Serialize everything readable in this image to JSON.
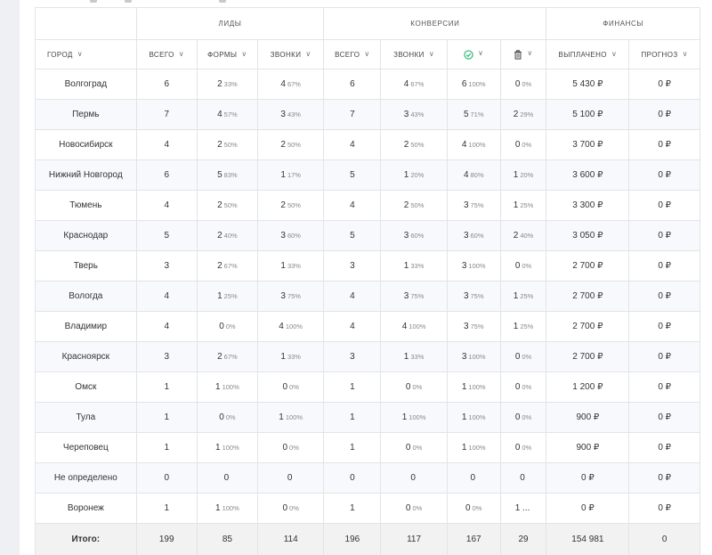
{
  "groups": [
    "Лиды",
    "Конверсии",
    "Финансы"
  ],
  "columns": {
    "city": "Город",
    "leads_total": "Всего",
    "leads_forms": "Формы",
    "leads_calls": "Звонки",
    "conv_total": "Всего",
    "conv_calls": "Звонки",
    "conv_ok_icon": "check-circle-icon",
    "conv_del_icon": "trash-icon",
    "spent": "Выплачено",
    "forecast": "Прогноз"
  },
  "colors": {
    "check": "#2bb673",
    "header_text": "#555555",
    "stripe": "#f8f9fc"
  },
  "rows": [
    {
      "city": "Волгоград",
      "lt": "6",
      "lf": "2",
      "lfp": "33%",
      "lc": "4",
      "lcp": "67%",
      "ct": "6",
      "cc": "4",
      "ccp": "67%",
      "ok": "6",
      "okp": "100%",
      "del": "0",
      "delp": "0%",
      "spent": "5 430 ₽",
      "fc": "0 ₽"
    },
    {
      "city": "Пермь",
      "lt": "7",
      "lf": "4",
      "lfp": "57%",
      "lc": "3",
      "lcp": "43%",
      "ct": "7",
      "cc": "3",
      "ccp": "43%",
      "ok": "5",
      "okp": "71%",
      "del": "2",
      "delp": "29%",
      "spent": "5 100 ₽",
      "fc": "0 ₽"
    },
    {
      "city": "Новосибирск",
      "lt": "4",
      "lf": "2",
      "lfp": "50%",
      "lc": "2",
      "lcp": "50%",
      "ct": "4",
      "cc": "2",
      "ccp": "50%",
      "ok": "4",
      "okp": "100%",
      "del": "0",
      "delp": "0%",
      "spent": "3 700 ₽",
      "fc": "0 ₽"
    },
    {
      "city": "Нижний Новгород",
      "lt": "6",
      "lf": "5",
      "lfp": "83%",
      "lc": "1",
      "lcp": "17%",
      "ct": "5",
      "cc": "1",
      "ccp": "20%",
      "ok": "4",
      "okp": "80%",
      "del": "1",
      "delp": "20%",
      "spent": "3 600 ₽",
      "fc": "0 ₽"
    },
    {
      "city": "Тюмень",
      "lt": "4",
      "lf": "2",
      "lfp": "50%",
      "lc": "2",
      "lcp": "50%",
      "ct": "4",
      "cc": "2",
      "ccp": "50%",
      "ok": "3",
      "okp": "75%",
      "del": "1",
      "delp": "25%",
      "spent": "3 300 ₽",
      "fc": "0 ₽"
    },
    {
      "city": "Краснодар",
      "lt": "5",
      "lf": "2",
      "lfp": "40%",
      "lc": "3",
      "lcp": "60%",
      "ct": "5",
      "cc": "3",
      "ccp": "60%",
      "ok": "3",
      "okp": "60%",
      "del": "2",
      "delp": "40%",
      "spent": "3 050 ₽",
      "fc": "0 ₽"
    },
    {
      "city": "Тверь",
      "lt": "3",
      "lf": "2",
      "lfp": "67%",
      "lc": "1",
      "lcp": "33%",
      "ct": "3",
      "cc": "1",
      "ccp": "33%",
      "ok": "3",
      "okp": "100%",
      "del": "0",
      "delp": "0%",
      "spent": "2 700 ₽",
      "fc": "0 ₽"
    },
    {
      "city": "Вологда",
      "lt": "4",
      "lf": "1",
      "lfp": "25%",
      "lc": "3",
      "lcp": "75%",
      "ct": "4",
      "cc": "3",
      "ccp": "75%",
      "ok": "3",
      "okp": "75%",
      "del": "1",
      "delp": "25%",
      "spent": "2 700 ₽",
      "fc": "0 ₽"
    },
    {
      "city": "Владимир",
      "lt": "4",
      "lf": "0",
      "lfp": "0%",
      "lc": "4",
      "lcp": "100%",
      "ct": "4",
      "cc": "4",
      "ccp": "100%",
      "ok": "3",
      "okp": "75%",
      "del": "1",
      "delp": "25%",
      "spent": "2 700 ₽",
      "fc": "0 ₽"
    },
    {
      "city": "Красноярск",
      "lt": "3",
      "lf": "2",
      "lfp": "67%",
      "lc": "1",
      "lcp": "33%",
      "ct": "3",
      "cc": "1",
      "ccp": "33%",
      "ok": "3",
      "okp": "100%",
      "del": "0",
      "delp": "0%",
      "spent": "2 700 ₽",
      "fc": "0 ₽"
    },
    {
      "city": "Омск",
      "lt": "1",
      "lf": "1",
      "lfp": "100%",
      "lc": "0",
      "lcp": "0%",
      "ct": "1",
      "cc": "0",
      "ccp": "0%",
      "ok": "1",
      "okp": "100%",
      "del": "0",
      "delp": "0%",
      "spent": "1 200 ₽",
      "fc": "0 ₽"
    },
    {
      "city": "Тула",
      "lt": "1",
      "lf": "0",
      "lfp": "0%",
      "lc": "1",
      "lcp": "100%",
      "ct": "1",
      "cc": "1",
      "ccp": "100%",
      "ok": "1",
      "okp": "100%",
      "del": "0",
      "delp": "0%",
      "spent": "900 ₽",
      "fc": "0 ₽"
    },
    {
      "city": "Череповец",
      "lt": "1",
      "lf": "1",
      "lfp": "100%",
      "lc": "0",
      "lcp": "0%",
      "ct": "1",
      "cc": "0",
      "ccp": "0%",
      "ok": "1",
      "okp": "100%",
      "del": "0",
      "delp": "0%",
      "spent": "900 ₽",
      "fc": "0 ₽"
    },
    {
      "city": "Не определено",
      "lt": "0",
      "lf": "0",
      "lfp": "",
      "lc": "0",
      "lcp": "",
      "ct": "0",
      "cc": "0",
      "ccp": "",
      "ok": "0",
      "okp": "",
      "del": "0",
      "delp": "",
      "spent": "0 ₽",
      "fc": "0 ₽"
    },
    {
      "city": "Воронеж",
      "lt": "1",
      "lf": "1",
      "lfp": "100%",
      "lc": "0",
      "lcp": "0%",
      "ct": "1",
      "cc": "0",
      "ccp": "0%",
      "ok": "0",
      "okp": "0%",
      "del": "1 ...",
      "delp": "",
      "spent": "0 ₽",
      "fc": "0 ₽"
    }
  ],
  "totals": {
    "label": "Итого:",
    "lt": "199",
    "lf": "85",
    "lc": "114",
    "ct": "196",
    "cc": "117",
    "ok": "167",
    "del": "29",
    "spent": "154 981",
    "fc": "0"
  }
}
